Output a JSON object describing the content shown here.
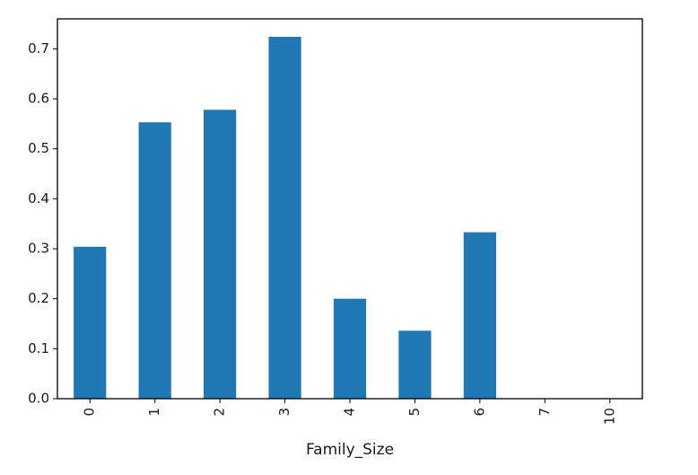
{
  "chart_data": {
    "type": "bar",
    "title": "",
    "xlabel": "Family_Size",
    "ylabel": "",
    "categories": [
      "0",
      "1",
      "2",
      "3",
      "4",
      "5",
      "6",
      "7",
      "10"
    ],
    "values": [
      0.304,
      0.553,
      0.578,
      0.724,
      0.2,
      0.136,
      0.333,
      0.0,
      0.0
    ],
    "ylim": [
      0,
      0.76
    ],
    "yticks": [
      0.0,
      0.1,
      0.2,
      0.3,
      0.4,
      0.5,
      0.6,
      0.7
    ],
    "ytick_labels": [
      "0.0",
      "0.1",
      "0.2",
      "0.3",
      "0.4",
      "0.5",
      "0.6",
      "0.7"
    ],
    "bar_color": "#1f77b4",
    "grid": false,
    "legend": "none",
    "xtick_rotation": "vertical"
  }
}
